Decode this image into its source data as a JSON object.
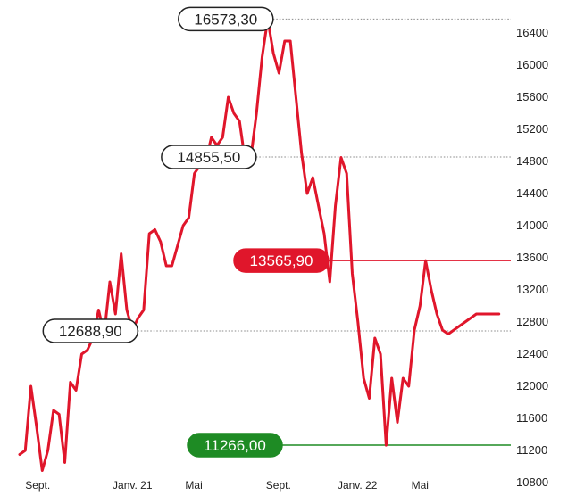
{
  "chart_data": {
    "type": "line",
    "colors": {
      "line": "#e0162b",
      "support": "#1e8b24",
      "reference": "#888888",
      "resistance": "#e0162b"
    },
    "y_ticks": [
      16400,
      16000,
      15600,
      15200,
      14800,
      14400,
      14000,
      13600,
      13200,
      12800,
      12400,
      12000,
      11600,
      11200,
      10800
    ],
    "x_ticks": [
      {
        "label": "Sept.",
        "x": 3.2
      },
      {
        "label": "Janv. 21",
        "x": 20.0
      },
      {
        "label": "Mai",
        "x": 30.9
      },
      {
        "label": "Sept.",
        "x": 45.9
      },
      {
        "label": "Janv. 22",
        "x": 59.9
      },
      {
        "label": "Mai",
        "x": 71.0
      }
    ],
    "xlim": [
      0,
      86
    ],
    "ylim": [
      10800,
      16700
    ],
    "grid": false,
    "annotations": [
      {
        "label": "16573,30",
        "value": 16573.3,
        "style": "outline",
        "line": "dotted"
      },
      {
        "label": "14855,50",
        "value": 14855.5,
        "style": "outline",
        "line": "dotted"
      },
      {
        "label": "13565,90",
        "value": 13565.9,
        "style": "filled-red",
        "line": "solid-red"
      },
      {
        "label": "12688,90",
        "value": 12688.9,
        "style": "outline",
        "line": "dotted"
      },
      {
        "label": "11266,00",
        "value": 11266.0,
        "style": "filled-green",
        "line": "solid-green"
      }
    ],
    "series": [
      {
        "x": [
          0,
          1,
          2,
          3,
          4,
          5,
          6,
          7,
          8,
          9,
          10,
          11,
          12,
          13,
          14,
          15,
          16,
          17,
          18,
          19,
          20,
          21,
          22,
          23,
          24,
          25,
          26,
          27,
          28,
          29,
          30,
          31,
          32,
          33,
          34,
          35,
          36,
          37,
          38,
          39,
          40,
          41,
          42,
          43,
          44,
          45,
          46,
          47,
          48,
          49,
          50,
          51,
          52,
          53,
          54,
          55,
          56,
          57,
          58,
          59,
          60,
          61,
          62,
          63,
          64,
          65,
          66,
          67,
          68,
          69,
          70,
          71,
          72,
          73,
          74,
          75,
          76,
          77,
          78,
          79,
          80,
          81,
          82,
          83,
          84,
          85
        ],
        "values": [
          11150,
          11200,
          12000,
          11500,
          10950,
          11200,
          11700,
          11650,
          11050,
          12050,
          11950,
          12400,
          12450,
          12600,
          12950,
          12650,
          13300,
          12900,
          13650,
          12950,
          12700,
          12850,
          12950,
          13900,
          13950,
          13800,
          13500,
          13500,
          13750,
          14000,
          14100,
          14650,
          14750,
          14800,
          15100,
          15000,
          15100,
          15600,
          15400,
          15300,
          14800,
          14850,
          15400,
          16100,
          16573,
          16150,
          15900,
          16300,
          16300,
          15600,
          14900,
          14400,
          14600,
          14250,
          13900,
          13300,
          14250,
          14850,
          14650,
          13400,
          12800,
          12100,
          11850,
          12600,
          12400,
          11266,
          12100,
          11550,
          12100,
          12000,
          12700,
          13000,
          13566,
          13200,
          12900,
          12700,
          12650,
          12700,
          12750,
          12800,
          12850,
          12900,
          12900,
          12900,
          12900,
          12900
        ]
      }
    ]
  }
}
